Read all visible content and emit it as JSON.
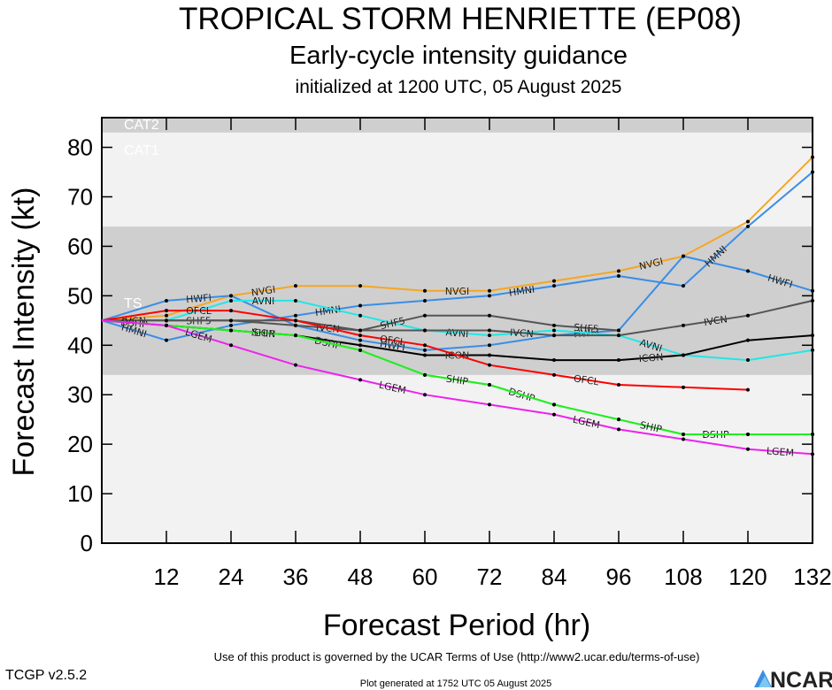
{
  "chart_data": {
    "type": "line",
    "title": "TROPICAL STORM HENRIETTE (EP08)",
    "subtitle": "Early-cycle intensity guidance",
    "subtitle2": "initialized at 1200 UTC, 05 August 2025",
    "xlabel": "Forecast Period (hr)",
    "ylabel": "Forecast Intensity (kt)",
    "xlim": [
      0,
      132
    ],
    "ylim": [
      0,
      86
    ],
    "x_ticks": [
      12,
      24,
      36,
      48,
      60,
      72,
      84,
      96,
      108,
      120,
      132
    ],
    "y_ticks": [
      0,
      10,
      20,
      30,
      40,
      50,
      60,
      70,
      80
    ],
    "bands": [
      {
        "name": "TS",
        "from": 34,
        "to": 64,
        "color": "#cfcfcf"
      },
      {
        "name": "CAT1",
        "from": 64,
        "to": 83,
        "color": "#f2f2f2"
      },
      {
        "name": "CAT2",
        "from": 83,
        "to": 86,
        "color": "#cfcfcf"
      }
    ],
    "series": [
      {
        "name": "NVGI",
        "color": "#f5a623",
        "x": [
          0,
          12,
          24,
          36,
          48,
          60,
          72,
          84,
          96,
          108,
          120,
          132
        ],
        "y": [
          45,
          46,
          50,
          52,
          52,
          51,
          51,
          53,
          55,
          58,
          65,
          78
        ]
      },
      {
        "name": "HWFI",
        "color": "#3a8ee6",
        "x": [
          0,
          12,
          24,
          36,
          48,
          60,
          72,
          84,
          96,
          108,
          120,
          132
        ],
        "y": [
          45,
          49,
          50,
          44,
          41,
          39,
          40,
          42,
          43,
          58,
          55,
          51
        ]
      },
      {
        "name": "HMNI",
        "color": "#3a8ee6",
        "x": [
          0,
          12,
          24,
          36,
          48,
          60,
          72,
          84,
          96,
          108,
          120,
          132
        ],
        "y": [
          45,
          41,
          44,
          46,
          48,
          49,
          50,
          52,
          54,
          52,
          64,
          75
        ]
      },
      {
        "name": "AVNI",
        "color": "#22e6e6",
        "x": [
          0,
          12,
          24,
          36,
          48,
          60,
          72,
          84,
          96,
          108,
          120,
          132
        ],
        "y": [
          45,
          45,
          49,
          49,
          46,
          43,
          42,
          43,
          42,
          38,
          37,
          39
        ]
      },
      {
        "name": "SHF5",
        "color": "#555555",
        "x": [
          0,
          12,
          24,
          36,
          48,
          60,
          72,
          84,
          96
        ],
        "y": [
          45,
          45,
          45,
          45,
          43,
          46,
          46,
          44,
          43
        ]
      },
      {
        "name": "IVCN",
        "color": "#555555",
        "x": [
          0,
          12,
          24,
          36,
          48,
          60,
          72,
          84,
          96,
          108,
          120,
          132
        ],
        "y": [
          45,
          45,
          45,
          44,
          43,
          43,
          43,
          42,
          42,
          44,
          46,
          49
        ]
      },
      {
        "name": "ICON",
        "color": "#000000",
        "x": [
          0,
          12,
          24,
          36,
          48,
          60,
          72,
          84,
          96,
          108,
          120,
          132
        ],
        "y": [
          45,
          44,
          43,
          42,
          40,
          38,
          38,
          37,
          37,
          38,
          41,
          42
        ]
      },
      {
        "name": "OFCL",
        "color": "#ff0000",
        "x": [
          0,
          12,
          24,
          36,
          48,
          60,
          72,
          84,
          96,
          108,
          120
        ],
        "y": [
          45,
          47,
          47,
          45,
          42,
          40,
          36,
          34,
          32,
          31.5,
          31
        ]
      },
      {
        "name": "DSHP",
        "color": "#22ee22",
        "x": [
          0,
          12,
          24,
          36,
          48,
          60,
          72,
          84,
          96,
          108,
          120,
          132
        ],
        "y": [
          45,
          44,
          43,
          42,
          39,
          34,
          32,
          28,
          25,
          22,
          22,
          22
        ]
      },
      {
        "name": "SHIP",
        "color": "#22ee22",
        "x": [
          0,
          12,
          24,
          36,
          48,
          60,
          72,
          84,
          96,
          108,
          120,
          132
        ],
        "y": [
          45,
          44,
          43,
          42,
          39,
          34,
          32,
          28,
          25,
          22,
          22,
          22
        ]
      },
      {
        "name": "LGEM",
        "color": "#ee22ee",
        "x": [
          0,
          12,
          24,
          36,
          48,
          60,
          72,
          84,
          96,
          108,
          120,
          132
        ],
        "y": [
          45,
          44,
          40,
          36,
          33,
          30,
          28,
          26,
          23,
          21,
          19,
          18
        ]
      }
    ],
    "grid": false,
    "legend": "none"
  },
  "footer": {
    "version": "TCGP v2.5.2",
    "terms": "Use of this product is governed by the UCAR Terms of Use (http://www2.ucar.edu/terms-of-use)",
    "generated": "Plot generated at 1752 UTC   05 August 2025",
    "logo": "NCAR"
  }
}
